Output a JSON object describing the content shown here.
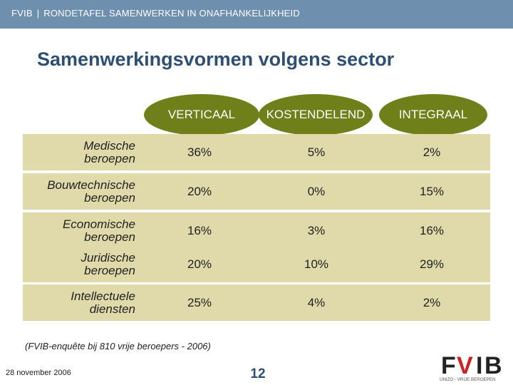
{
  "header": {
    "org": "FVIB",
    "separator": "|",
    "subtitle": "RONDETAFEL SAMENWERKEN IN ONAFHANKELIJKHEID"
  },
  "title": "Samenwerkingsvormen volgens sector",
  "table": {
    "columns": [
      "VERTICAAL",
      "KOSTENDELEND",
      "INTEGRAAL"
    ],
    "rows": [
      {
        "label_line1": "Medische",
        "label_line2": "beroepen",
        "values": [
          "36%",
          "5%",
          "2%"
        ]
      },
      {
        "label_line1": "Bouwtechnische",
        "label_line2": "beroepen",
        "values": [
          "20%",
          "0%",
          "15%"
        ]
      },
      {
        "label_line1": "Economische",
        "label_line2": "beroepen",
        "values": [
          "16%",
          "3%",
          "16%"
        ]
      },
      {
        "label_line1": "Juridische",
        "label_line2": "beroepen",
        "values": [
          "20%",
          "10%",
          "29%"
        ]
      },
      {
        "label_line1": "Intellectuele",
        "label_line2": "diensten",
        "values": [
          "25%",
          "4%",
          "2%"
        ]
      }
    ]
  },
  "source_note": "(FVIB-enquête bij 810 vrije beroepers - 2006)",
  "footer": {
    "date": "28 november 2006",
    "page": "12"
  },
  "logo": {
    "letters": [
      "F",
      "V",
      "I",
      "B"
    ],
    "tagline": "UNIZO - VRIJE BEROEPEN"
  },
  "colors": {
    "header_bar": "#6f8fae",
    "title": "#2e4f72",
    "column_ellipse": "#6f7f1a",
    "row_band": "#e0d9a9",
    "logo_v": "#cc2222"
  }
}
